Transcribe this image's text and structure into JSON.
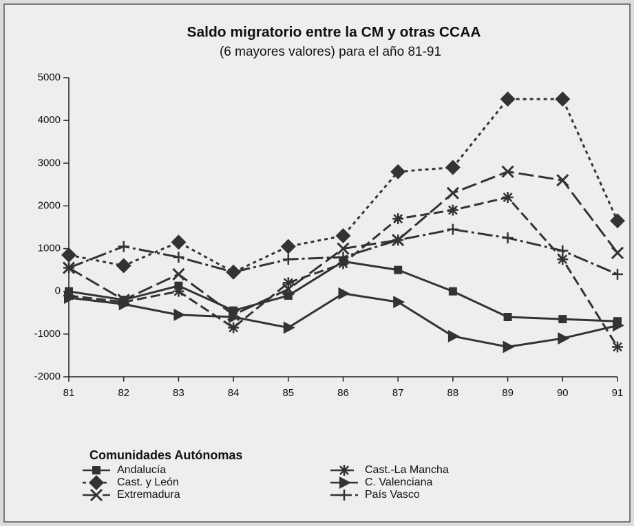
{
  "chart_data": {
    "type": "line",
    "title": "Saldo migratorio entre la CM y otras CCAA",
    "subtitle": "(6 mayores valores) para el año 81-91",
    "categories": [
      "81",
      "82",
      "83",
      "84",
      "85",
      "86",
      "87",
      "88",
      "89",
      "90",
      "91"
    ],
    "ylim": [
      -2000,
      5000
    ],
    "yticks": [
      -2000,
      -1000,
      0,
      1000,
      2000,
      3000,
      4000,
      5000
    ],
    "legend_title": "Comunidades Autónomas",
    "series": [
      {
        "name": "Andalucía",
        "color": "#333333",
        "marker": "square",
        "dash": "none",
        "values": [
          0,
          -200,
          130,
          -450,
          -100,
          700,
          500,
          0,
          -600,
          -650,
          -700
        ]
      },
      {
        "name": "Cast.-La Mancha",
        "color": "#333333",
        "marker": "star",
        "dash": "14,6",
        "values": [
          -100,
          -250,
          0,
          -850,
          200,
          650,
          1700,
          1900,
          2200,
          750,
          -1300
        ]
      },
      {
        "name": "Cast. y León",
        "color": "#333333",
        "marker": "diamond",
        "dash": "5,5",
        "values": [
          850,
          600,
          1150,
          450,
          1050,
          1300,
          2800,
          2900,
          4500,
          4500,
          1650
        ]
      },
      {
        "name": "C. Valenciana",
        "color": "#333333",
        "marker": "triangle",
        "dash": "none",
        "values": [
          -150,
          -300,
          -550,
          -600,
          -850,
          -50,
          -250,
          -1050,
          -1300,
          -1100,
          -800
        ]
      },
      {
        "name": "Extremadura",
        "color": "#333333",
        "marker": "x",
        "dash": "22,7",
        "values": [
          550,
          -200,
          400,
          -550,
          50,
          1000,
          1200,
          2300,
          2800,
          2600,
          900
        ]
      },
      {
        "name": "País Vasco",
        "color": "#333333",
        "marker": "plus",
        "dash": "22,5,4,5",
        "values": [
          550,
          1050,
          800,
          450,
          750,
          800,
          1200,
          1450,
          1250,
          950,
          400
        ]
      }
    ]
  }
}
